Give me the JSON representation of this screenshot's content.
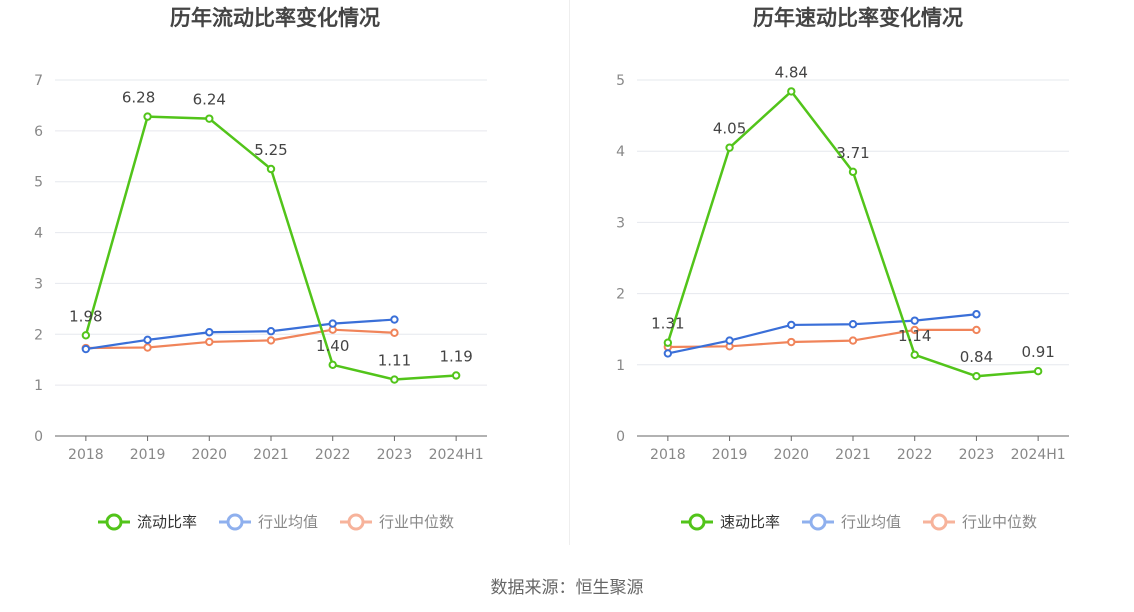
{
  "footer": {
    "source": "数据来源：恒生聚源"
  },
  "colors": {
    "main": "#52c41a",
    "avg": "#3a6fd8",
    "median": "#f0845a",
    "avg_legend": "#8fb0ee",
    "median_legend": "#f7b39b"
  },
  "chart_data": [
    {
      "type": "line",
      "title": "历年流动比率变化情况",
      "categories": [
        "2018",
        "2019",
        "2020",
        "2021",
        "2022",
        "2023",
        "2024H1"
      ],
      "ylim": [
        0,
        7
      ],
      "yticks": [
        "0",
        "1",
        "2",
        "3",
        "4",
        "5",
        "6",
        "7"
      ],
      "grid": true,
      "legend_position": "bottom",
      "series": [
        {
          "name": "流动比率",
          "values": [
            1.98,
            6.28,
            6.24,
            5.25,
            1.4,
            1.11,
            1.19
          ],
          "labels": [
            "1.98",
            "6.28",
            "6.24",
            "5.25",
            "1.40",
            "1.11",
            "1.19"
          ]
        },
        {
          "name": "行业均值",
          "values": [
            1.71,
            1.89,
            2.04,
            2.06,
            2.21,
            2.29,
            null
          ]
        },
        {
          "name": "行业中位数",
          "values": [
            1.73,
            1.74,
            1.85,
            1.88,
            2.09,
            2.03,
            null
          ]
        }
      ]
    },
    {
      "type": "line",
      "title": "历年速动比率变化情况",
      "categories": [
        "2018",
        "2019",
        "2020",
        "2021",
        "2022",
        "2023",
        "2024H1"
      ],
      "ylim": [
        0,
        5
      ],
      "yticks": [
        "0",
        "1",
        "2",
        "3",
        "4",
        "5"
      ],
      "grid": true,
      "legend_position": "bottom",
      "series": [
        {
          "name": "速动比率",
          "values": [
            1.31,
            4.05,
            4.84,
            3.71,
            1.14,
            0.84,
            0.91
          ],
          "labels": [
            "1.31",
            "4.05",
            "4.84",
            "3.71",
            "1.14",
            "0.84",
            "0.91"
          ]
        },
        {
          "name": "行业均值",
          "values": [
            1.16,
            1.34,
            1.56,
            1.57,
            1.62,
            1.71,
            null
          ]
        },
        {
          "name": "行业中位数",
          "values": [
            1.25,
            1.26,
            1.32,
            1.34,
            1.49,
            1.49,
            null
          ]
        }
      ]
    }
  ]
}
